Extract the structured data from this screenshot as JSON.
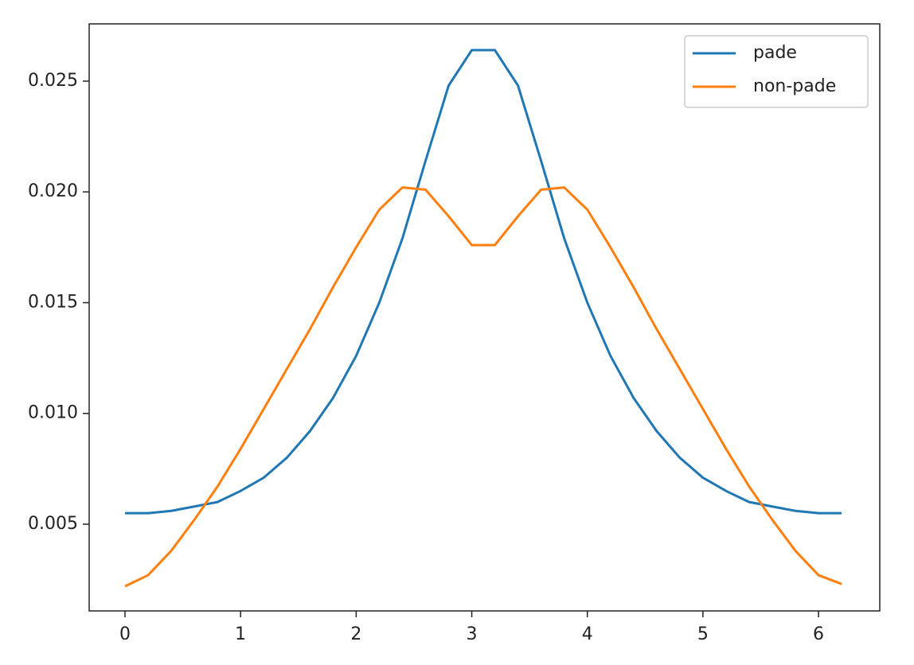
{
  "chart_data": {
    "type": "line",
    "x": [
      0,
      0.2,
      0.4,
      0.6,
      0.8,
      1.0,
      1.2,
      1.4,
      1.6,
      1.8,
      2.0,
      2.2,
      2.4,
      2.6,
      2.8,
      3.0,
      3.2,
      3.4,
      3.6,
      3.8,
      4.0,
      4.2,
      4.4,
      4.6,
      4.8,
      5.0,
      5.2,
      5.4,
      5.6,
      5.8,
      6.0,
      6.2
    ],
    "series": [
      {
        "name": "pade",
        "color": "#1f77b4",
        "values": [
          0.0055,
          0.0055,
          0.0056,
          0.0058,
          0.006,
          0.0065,
          0.0071,
          0.008,
          0.0092,
          0.0107,
          0.0126,
          0.015,
          0.0179,
          0.0214,
          0.0248,
          0.0264,
          0.0264,
          0.0248,
          0.0214,
          0.0179,
          0.015,
          0.0126,
          0.0107,
          0.0092,
          0.008,
          0.0071,
          0.0065,
          0.006,
          0.0058,
          0.0056,
          0.0055,
          0.0055
        ]
      },
      {
        "name": "non-pade",
        "color": "#ff7f0e",
        "values": [
          0.0022,
          0.0027,
          0.0038,
          0.0052,
          0.0067,
          0.0084,
          0.0102,
          0.012,
          0.0138,
          0.0157,
          0.0175,
          0.0192,
          0.0202,
          0.0201,
          0.0189,
          0.0176,
          0.0176,
          0.0189,
          0.0201,
          0.0202,
          0.0192,
          0.0175,
          0.0157,
          0.0138,
          0.012,
          0.0102,
          0.0084,
          0.0067,
          0.0052,
          0.0038,
          0.0027,
          0.0023
        ]
      }
    ],
    "xlim": [
      -0.31,
      6.53
    ],
    "xticks": [
      0,
      1,
      2,
      3,
      4,
      5,
      6
    ],
    "ylim": [
      0.001086,
      0.027585
    ],
    "yticks": [
      0.005,
      {
        "value": 0.01,
        "label": "0.010"
      },
      0.015,
      {
        "value": 0.02,
        "label": "0.020"
      },
      0.025
    ],
    "legend": "upper right"
  }
}
